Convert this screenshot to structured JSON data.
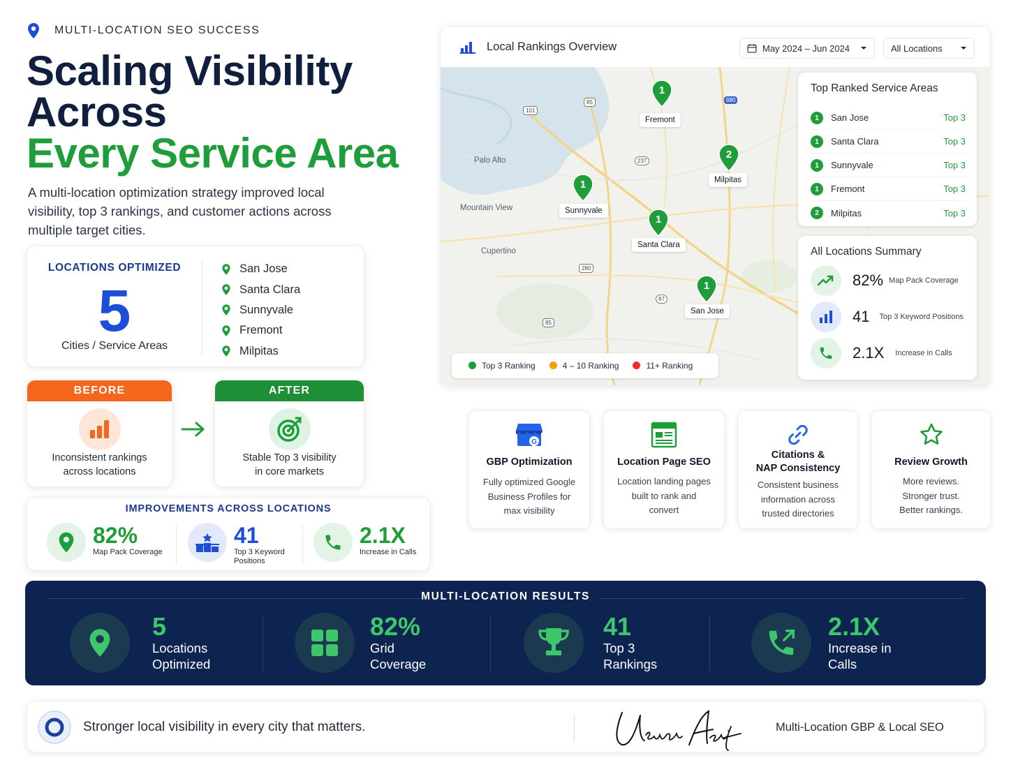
{
  "header": {
    "eyebrow": "MULTI-LOCATION SEO SUCCESS",
    "title_line1": "Scaling Visibility",
    "title_line2": "Across",
    "title_line3": "Every Service Area",
    "lead": "A multi-location optimization strategy improved local visibility, top 3 rankings, and customer actions across multiple target cities."
  },
  "locations_card": {
    "eyebrow": "LOCATIONS OPTIMIZED",
    "count": "5",
    "caption": "Cities / Service Areas",
    "cities": [
      "San Jose",
      "Santa Clara",
      "Sunnyvale",
      "Fremont",
      "Milpitas"
    ]
  },
  "before": {
    "label": "BEFORE",
    "text_line1": "Inconsistent rankings",
    "text_line2": "across locations"
  },
  "after": {
    "label": "AFTER",
    "text_line1": "Stable Top 3 visibility",
    "text_line2": "in core markets"
  },
  "improvements": {
    "title": "IMPROVEMENTS ACROSS LOCATIONS",
    "items": [
      {
        "value": "82%",
        "label_line1": "Map Pack Coverage",
        "label_line2": ""
      },
      {
        "value": "41",
        "label_line1": "Top 3 Keyword",
        "label_line2": "Positions"
      },
      {
        "value": "2.1X",
        "label_line1": "Increase in Calls",
        "label_line2": ""
      }
    ]
  },
  "dashboard": {
    "title": "Local Rankings Overview",
    "date_range": "May 2024 – Jun 2024",
    "location_filter": "All Locations",
    "map_labels": [
      "Palo Alto",
      "Mountain View",
      "Cupertino"
    ],
    "road_shields": [
      "101",
      "85",
      "237",
      "680",
      "280",
      "85",
      "87"
    ],
    "pins": [
      {
        "rank": "1",
        "city": "Fremont"
      },
      {
        "rank": "2",
        "city": "Milpitas"
      },
      {
        "rank": "1",
        "city": "Sunnyvale"
      },
      {
        "rank": "1",
        "city": "Santa Clara"
      },
      {
        "rank": "1",
        "city": "San Jose"
      }
    ],
    "legend": [
      "Top 3 Ranking",
      "4 – 10 Ranking",
      "11+ Ranking"
    ],
    "legend_colors": [
      "#1f9d3a",
      "#f59e0b",
      "#ef2b2b"
    ],
    "top_ranked": {
      "title": "Top Ranked Service Areas",
      "rows": [
        {
          "rank": "1",
          "city": "San Jose",
          "tier": "Top 3"
        },
        {
          "rank": "1",
          "city": "Santa Clara",
          "tier": "Top 3"
        },
        {
          "rank": "1",
          "city": "Sunnyvale",
          "tier": "Top 3"
        },
        {
          "rank": "1",
          "city": "Fremont",
          "tier": "Top 3"
        },
        {
          "rank": "2",
          "city": "Milpitas",
          "tier": "Top 3"
        }
      ]
    },
    "summary": {
      "title": "All Locations Summary",
      "rows": [
        {
          "value": "82%",
          "label": "Map Pack Coverage",
          "icon": "trending-up-icon"
        },
        {
          "value": "41",
          "label": "Top 3 Keyword Positions",
          "icon": "bar-chart-icon"
        },
        {
          "value": "2.1X",
          "label": "Increase in Calls",
          "icon": "phone-icon"
        }
      ]
    }
  },
  "features": [
    {
      "title_line1": "GBP Optimization",
      "title_line2": "",
      "desc_line1": "Fully optimized Google",
      "desc_line2": "Business Profiles for",
      "desc_line3": "max visibility",
      "icon": "google-business-icon"
    },
    {
      "title_line1": "Location Page SEO",
      "title_line2": "",
      "desc_line1": "Location landing pages",
      "desc_line2": "built to rank and",
      "desc_line3": "convert",
      "icon": "webpage-icon"
    },
    {
      "title_line1": "Citations &",
      "title_line2": "NAP Consistency",
      "desc_line1": "Consistent business",
      "desc_line2": "information across",
      "desc_line3": "trusted directories",
      "icon": "link-icon"
    },
    {
      "title_line1": "Review Growth",
      "title_line2": "",
      "desc_line1": "More reviews.",
      "desc_line2": "Stronger trust.",
      "desc_line3": "Better rankings.",
      "icon": "star-icon"
    }
  ],
  "results": {
    "title": "MULTI-LOCATION RESULTS",
    "items": [
      {
        "value": "5",
        "label_line1": "Locations",
        "label_line2": "Optimized",
        "icon": "location-pin-icon"
      },
      {
        "value": "82%",
        "label_line1": "Grid",
        "label_line2": "Coverage",
        "icon": "grid-icon"
      },
      {
        "value": "41",
        "label_line1": "Top 3",
        "label_line2": "Rankings",
        "icon": "trophy-icon"
      },
      {
        "value": "2.1X",
        "label_line1": "Increase in",
        "label_line2": "Calls",
        "icon": "phone-call-icon"
      }
    ]
  },
  "footer": {
    "tagline": "Stronger local visibility in every city that matters.",
    "signature": "Usman Asif",
    "role": "Multi-Location GBP & Local SEO"
  },
  "colors": {
    "navy": "#0d2451",
    "green": "#1f9d3a",
    "blue": "#1d4ed8",
    "orange": "#f4661b"
  }
}
